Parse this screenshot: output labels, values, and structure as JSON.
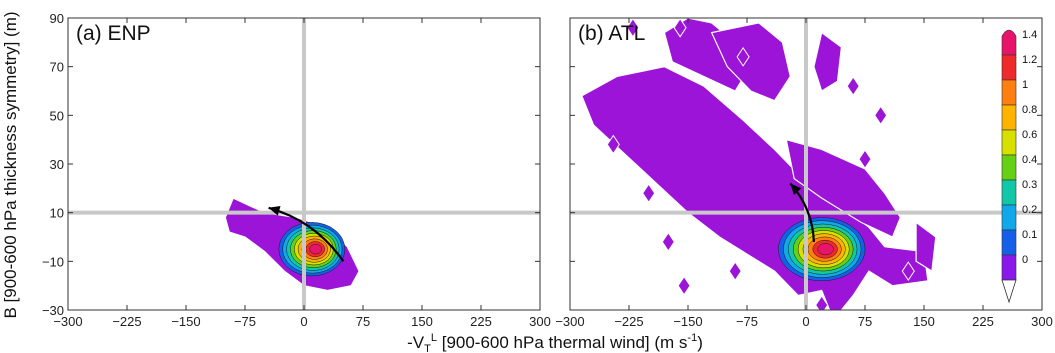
{
  "chart_data": [
    {
      "type": "heatmap",
      "panel_label": "(a) ENP",
      "xlabel": "-V",
      "xlabel_sub": "T",
      "xlabel_sup": "L",
      "xlabel_rest": " [900-600 hPa thermal wind] (m s",
      "xlabel_unit_sup": "-1",
      "xlabel_end": ")",
      "ylabel": "B [900-600 hPa thickness symmetry] (m)",
      "xlim": [
        -300,
        300
      ],
      "ylim": [
        -30,
        90
      ],
      "xticks": [
        "−300",
        "−225",
        "−150",
        "−75",
        "0",
        "75",
        "150",
        "225",
        "300"
      ],
      "yticks": [
        "90",
        "70",
        "50",
        "30",
        "10",
        "−10",
        "−30"
      ],
      "reference_lines": {
        "x": 0,
        "y": 10
      },
      "density_peak": {
        "x": 10,
        "y": -5,
        "value": 1.4
      },
      "arrow": {
        "from": [
          50,
          -10
        ],
        "to": [
          -45,
          12
        ]
      }
    },
    {
      "type": "heatmap",
      "panel_label": "(b) ATL",
      "xlim": [
        -300,
        300
      ],
      "ylim": [
        -30,
        90
      ],
      "xticks": [
        "−300",
        "−225",
        "−150",
        "−75",
        "0",
        "75",
        "150",
        "225",
        "300"
      ],
      "reference_lines": {
        "x": 0,
        "y": 10
      },
      "density_peak": {
        "x": 20,
        "y": -5,
        "value": 1.4
      },
      "arrow": {
        "from": [
          10,
          -2
        ],
        "to": [
          -20,
          22
        ]
      }
    }
  ],
  "colorbar": {
    "ticks": [
      "1.4",
      "1.2",
      "1",
      "0.8",
      "0.6",
      "0.4",
      "0.3",
      "0.2",
      "0.1",
      "0"
    ],
    "colors": [
      "#e8146a",
      "#ee2a2a",
      "#ff7f10",
      "#ffb400",
      "#d8e000",
      "#66d014",
      "#10c8a8",
      "#10a8e8",
      "#1460e8",
      "#8a18e8"
    ],
    "fill_color": "#9b14d8"
  }
}
